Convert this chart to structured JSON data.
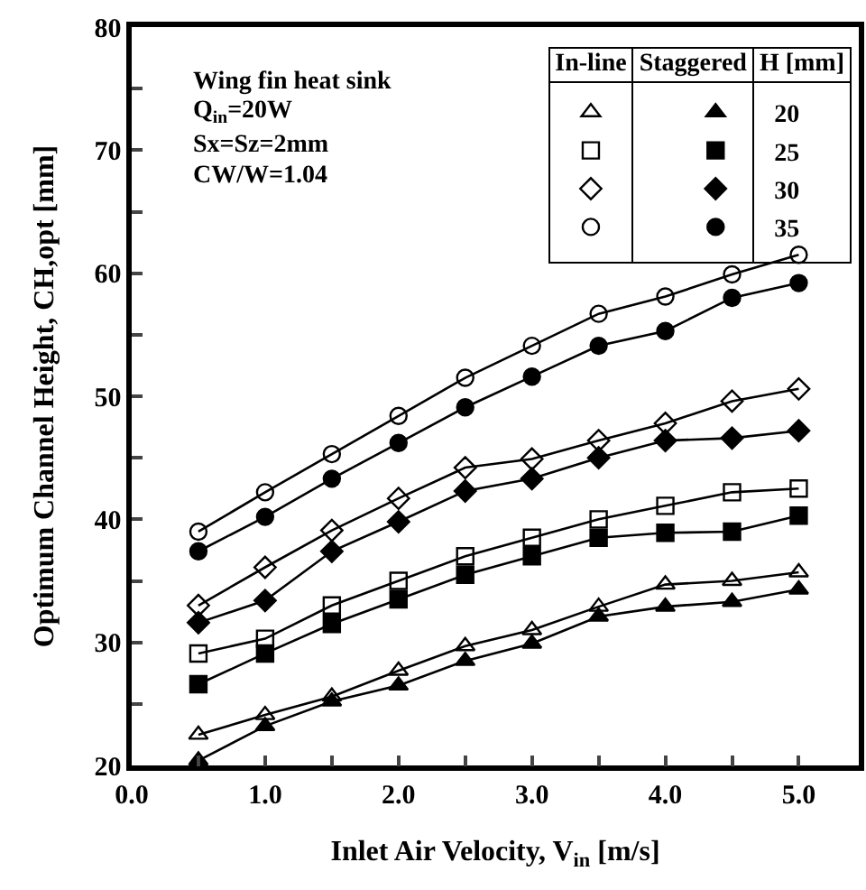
{
  "chart_data": {
    "type": "line",
    "xlabel": "Inlet Air Velocity, V$_{in}$ [m/s]",
    "ylabel": "Optimum Channel Height, CH,opt [mm]",
    "legend_title": "H [mm]",
    "annotations": [
      "Wing fin heat sink",
      "Q$_{in}$=20W",
      "Sx=Sz=2mm",
      "CW/W=1.04",
      "In-line",
      "Staggered"
    ],
    "x": [
      0.5,
      1.0,
      1.5,
      2.0,
      2.5,
      3.0,
      3.5,
      4.0,
      4.5,
      5.0
    ],
    "xlim": [
      0,
      5.45
    ],
    "xticks": [
      {
        "value": 0,
        "label": "0.0"
      },
      {
        "value": 0.5,
        "label": null
      },
      {
        "value": 1,
        "label": "1.0"
      },
      {
        "value": 1.5,
        "label": null
      },
      {
        "value": 2,
        "label": "2.0"
      },
      {
        "value": 2.5,
        "label": null
      },
      {
        "value": 3,
        "label": "3.0"
      },
      {
        "value": 3.5,
        "label": null
      },
      {
        "value": 4,
        "label": "4.0"
      },
      {
        "value": 4.5,
        "label": null
      },
      {
        "value": 5,
        "label": "5.0"
      }
    ],
    "ylim": [
      20,
      80
    ],
    "yticks": [
      20,
      {
        "value": 25,
        "label": null
      },
      30,
      {
        "value": 35,
        "label": null
      },
      40,
      {
        "value": 45,
        "label": null
      },
      50,
      {
        "value": 55,
        "label": null
      },
      60,
      {
        "value": 65,
        "label": null
      },
      70,
      {
        "value": 75,
        "label": null
      },
      80
    ],
    "grid": false,
    "legend": "top right",
    "line_style": "solid",
    "series": [
      {
        "color": "#000000",
        "marker": "triangle-open",
        "values": [
          22.5,
          24.1,
          25.6,
          27.7,
          29.7,
          31.0,
          32.9,
          34.7,
          35.0,
          35.7
        ]
      },
      {
        "name": "20",
        "color": "#000000",
        "marker": "triangle",
        "values": [
          20.4,
          23.2,
          25.2,
          26.5,
          28.5,
          29.9,
          32.1,
          32.9,
          33.3,
          34.3
        ]
      },
      {
        "color": "#000000",
        "marker": "square-open",
        "values": [
          29.1,
          30.3,
          33.0,
          35.0,
          37.0,
          38.5,
          40.0,
          41.1,
          42.2,
          42.5
        ]
      },
      {
        "name": "25",
        "color": "#000000",
        "marker": "square",
        "values": [
          26.6,
          29.1,
          31.5,
          33.5,
          35.5,
          37.0,
          38.5,
          38.9,
          39.0,
          40.3
        ]
      },
      {
        "color": "#000000",
        "marker": "diamond-open",
        "values": [
          33.0,
          36.1,
          39.1,
          41.7,
          44.2,
          44.9,
          46.4,
          47.8,
          49.6,
          50.6
        ]
      },
      {
        "name": "30",
        "color": "#000000",
        "marker": "diamond",
        "values": [
          31.6,
          33.4,
          37.4,
          39.8,
          42.3,
          43.3,
          45.0,
          46.4,
          46.6,
          47.2
        ]
      },
      {
        "color": "#000000",
        "marker": "circle-open",
        "values": [
          39.0,
          42.2,
          45.3,
          48.4,
          51.5,
          54.1,
          56.7,
          58.1,
          59.9,
          61.5
        ]
      },
      {
        "name": "35",
        "color": "#000000",
        "marker": "circle",
        "values": [
          37.4,
          40.2,
          43.3,
          46.2,
          49.1,
          51.6,
          54.1,
          55.3,
          58.0,
          59.2
        ]
      }
    ]
  }
}
